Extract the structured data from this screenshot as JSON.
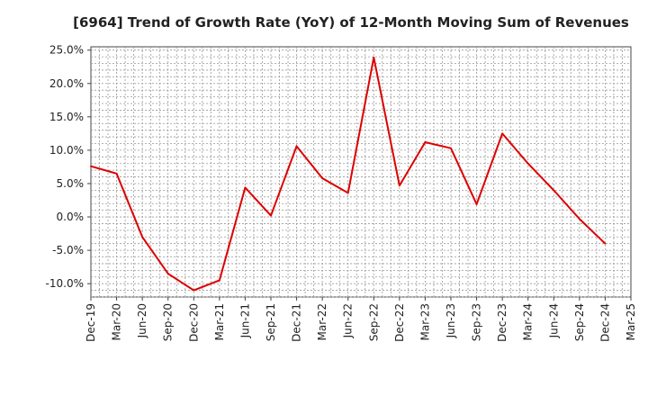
{
  "chart_data": {
    "type": "line",
    "title": "[6964]  Trend of Growth Rate (YoY) of 12-Month Moving Sum of Revenues",
    "xlabel": "",
    "ylabel": "",
    "ylim": [
      -12,
      25.5
    ],
    "y_ticks": [
      25,
      20,
      15,
      10,
      5,
      0,
      -5,
      -10
    ],
    "y_tick_labels": [
      "25.0%",
      "20.0%",
      "15.0%",
      "10.0%",
      "5.0%",
      "0.0%",
      "-5.0%",
      "-10.0%"
    ],
    "x_tick_labels": [
      "Dec-19",
      "Mar-20",
      "Jun-20",
      "Sep-20",
      "Dec-20",
      "Mar-21",
      "Jun-21",
      "Sep-21",
      "Dec-21",
      "Mar-22",
      "Jun-22",
      "Sep-22",
      "Dec-22",
      "Mar-23",
      "Jun-23",
      "Sep-23",
      "Dec-23",
      "Mar-24",
      "Jun-24",
      "Sep-24",
      "Dec-24",
      "Mar-25"
    ],
    "grid": true,
    "series": [
      {
        "color": "#dd0000",
        "x": [
          "Dec-19",
          "Mar-20",
          "Jun-20",
          "Sep-20",
          "Dec-20",
          "Mar-21",
          "Jun-21",
          "Sep-21",
          "Dec-21",
          "Mar-22",
          "Jun-22",
          "Sep-22",
          "Dec-22",
          "Mar-23",
          "Jun-23",
          "Sep-23",
          "Dec-23",
          "Mar-24",
          "Jun-24",
          "Sep-24",
          "Dec-24"
        ],
        "values": [
          7.6,
          6.5,
          -3.0,
          -8.5,
          -11.0,
          -9.5,
          4.4,
          0.2,
          10.6,
          5.8,
          3.6,
          23.9,
          4.7,
          11.2,
          10.3,
          1.9,
          12.5,
          8.0,
          4.0,
          -0.3,
          -4.0
        ]
      }
    ]
  }
}
